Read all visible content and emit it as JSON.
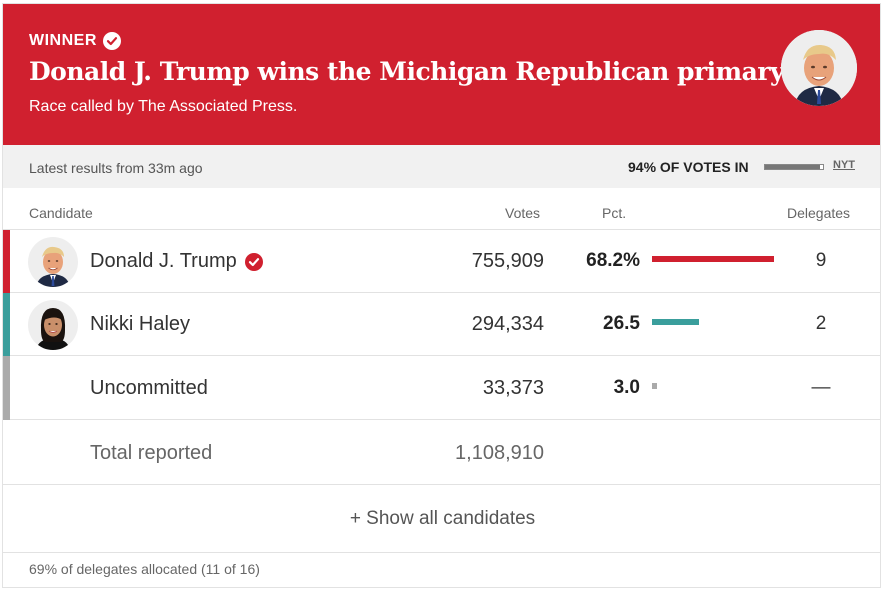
{
  "banner": {
    "winner_label": "WINNER",
    "headline": "Donald J. Trump wins the Michigan Republican primary.",
    "subline": "Race called by The Associated Press."
  },
  "meta": {
    "updated": "Latest results from 33m ago",
    "votes_in": "94% OF VOTES IN",
    "votes_in_fraction": 0.94,
    "source": "NYT"
  },
  "table": {
    "headers": {
      "candidate": "Candidate",
      "votes": "Votes",
      "pct": "Pct.",
      "delegates": "Delegates"
    },
    "rows": [
      {
        "name": "Donald J. Trump",
        "winner": true,
        "votes": "755,909",
        "pct": "68.2%",
        "pct_value": 68.2,
        "delegates": "9",
        "color": "#d0202f",
        "avatar": "trump"
      },
      {
        "name": "Nikki Haley",
        "winner": false,
        "votes": "294,334",
        "pct": "26.5",
        "pct_value": 26.5,
        "delegates": "2",
        "color": "#3a9e9c",
        "avatar": "haley"
      },
      {
        "name": "Uncommitted",
        "winner": false,
        "votes": "33,373",
        "pct": "3.0",
        "pct_value": 3.0,
        "delegates": "—",
        "color": "#aaaaaa",
        "avatar": null
      }
    ],
    "total_label": "Total reported",
    "total_votes": "1,108,910"
  },
  "show_all": "+ Show all candidates",
  "footer": "69% of delegates allocated (11 of 16)",
  "colors": {
    "banner": "#d0202f",
    "republican": "#d0202f",
    "haley": "#3a9e9c",
    "uncommitted": "#aaaaaa"
  },
  "icons": {
    "winner_check": "check-circle-icon"
  }
}
